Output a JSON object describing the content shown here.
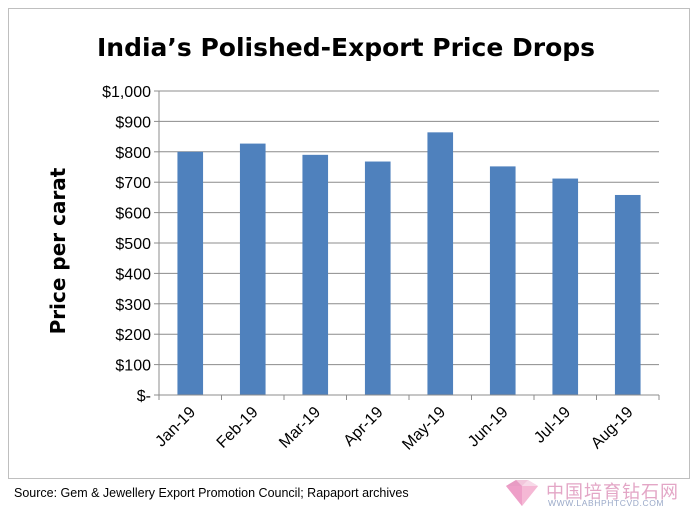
{
  "chart_data": {
    "type": "bar",
    "title": "India’s Polished-Export Price Drops",
    "ylabel": "Price per carat",
    "xlabel": "",
    "categories": [
      "Jan-19",
      "Feb-19",
      "Mar-19",
      "Apr-19",
      "May-19",
      "Jun-19",
      "Jul-19",
      "Aug-19"
    ],
    "values": [
      800,
      827,
      790,
      768,
      864,
      752,
      712,
      658
    ],
    "ylim": [
      0,
      1000
    ],
    "yticks": [
      0,
      100,
      200,
      300,
      400,
      500,
      600,
      700,
      800,
      900,
      1000
    ],
    "ytick_labels": [
      "$-",
      "$100",
      "$200",
      "$300",
      "$400",
      "$500",
      "$600",
      "$700",
      "$800",
      "$900",
      "$1,000"
    ],
    "grid": true,
    "legend": "none",
    "bar_color": "#4f81bd"
  },
  "source": "Source: Gem & Jewellery Export Promotion Council; Rapaport archives",
  "watermark": {
    "text": "中国培育钻石网",
    "url": "WWW.LABHPHTCVD.COM"
  }
}
